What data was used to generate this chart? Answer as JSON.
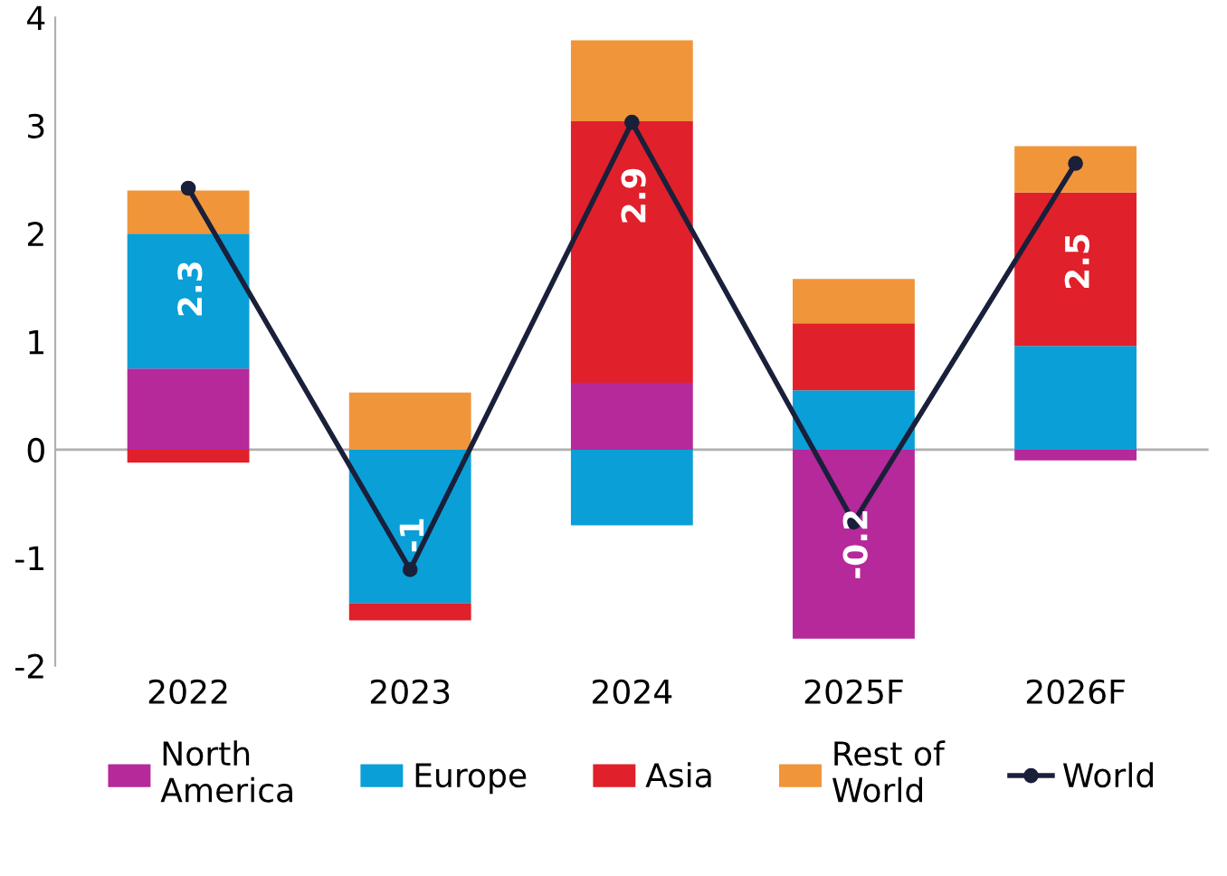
{
  "chart_data": {
    "type": "bar",
    "stacked": true,
    "categories": [
      "2022",
      "2023",
      "2024",
      "2025F",
      "2026F"
    ],
    "series": [
      {
        "name": "North\nAmerica",
        "color": "#b5299a",
        "values": [
          0.75,
          0,
          0.62,
          -1.75,
          -0.1
        ]
      },
      {
        "name": "Europe",
        "color": "#0a9fd6",
        "values": [
          1.25,
          -1.42,
          -0.7,
          0.55,
          0.96
        ]
      },
      {
        "name": "Asia",
        "color": "#e0202a",
        "values": [
          -0.12,
          -0.16,
          2.42,
          0.62,
          1.42
        ]
      },
      {
        "name": "Rest of\nWorld",
        "color": "#f0953a",
        "values": [
          0.4,
          0.53,
          0.75,
          0.41,
          0.43
        ]
      },
      {
        "name": "World",
        "type": "line",
        "color": "#1a1f3a",
        "marker": "circle",
        "values": [
          2.42,
          -1.11,
          3.03,
          -0.67,
          2.65
        ]
      }
    ],
    "totals": [
      "2.3",
      "-1",
      "2.9",
      "-0.2",
      "2.5"
    ],
    "ylim": [
      -2,
      4
    ],
    "yticks": [
      -2,
      -1,
      0,
      1,
      2,
      3,
      4
    ],
    "ref_lines": [
      {
        "axis": "y",
        "value": 0,
        "color": "#b0b0b0"
      }
    ],
    "legend": "bottom"
  }
}
